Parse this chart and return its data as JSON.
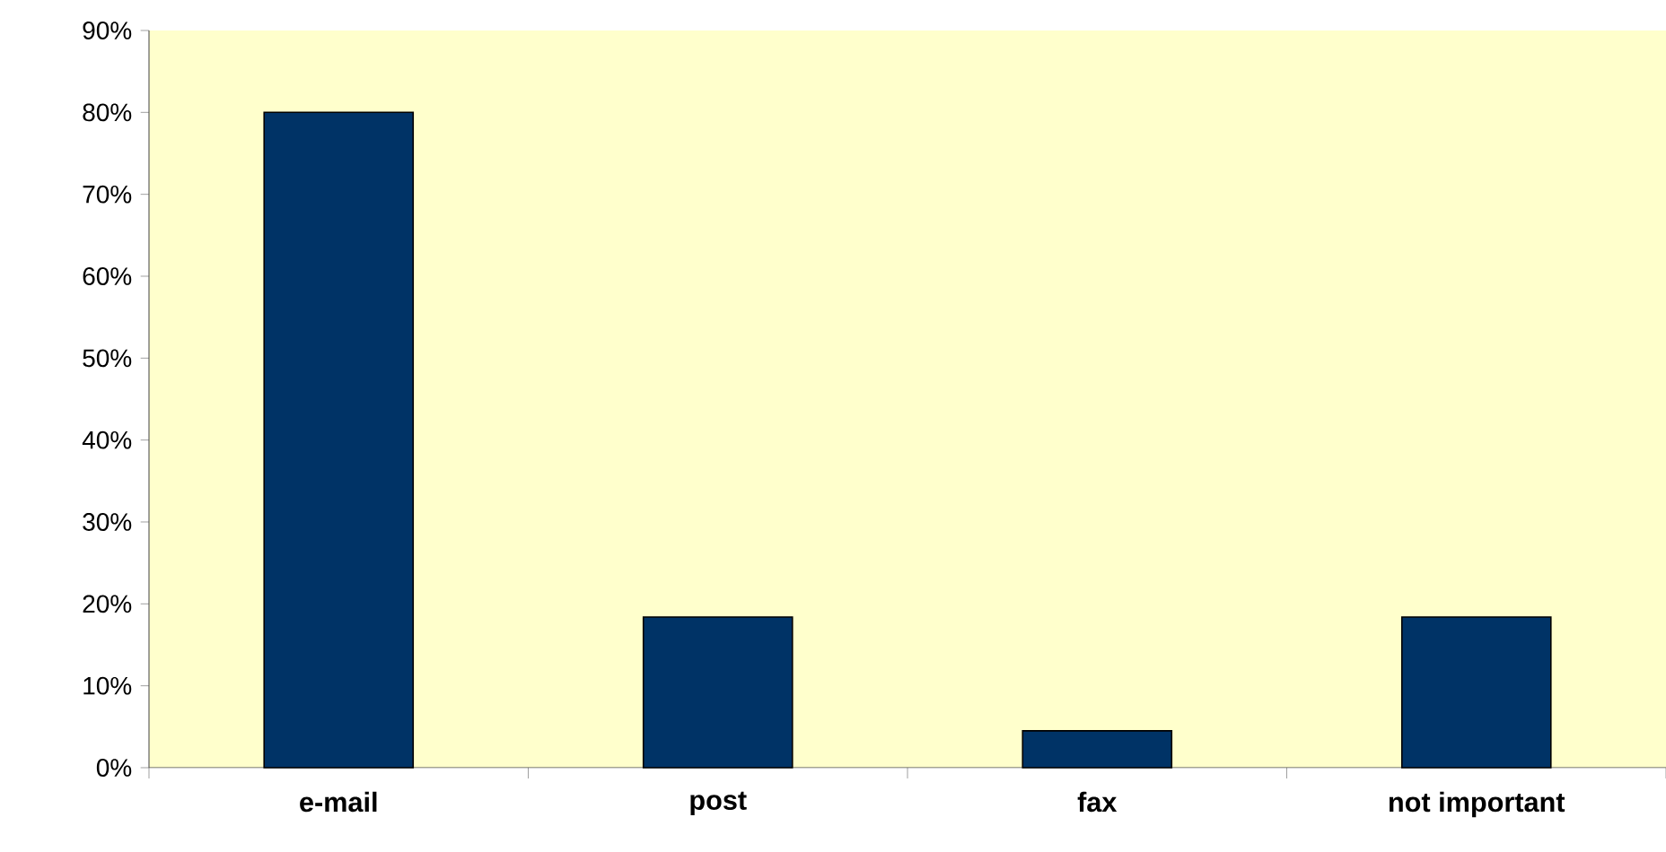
{
  "chart_data": {
    "type": "bar",
    "categories": [
      "e-mail",
      "post",
      "fax",
      "not important"
    ],
    "values": [
      80,
      18.4,
      4.5,
      18.4
    ],
    "color": "#003366",
    "ylim": [
      0,
      90
    ],
    "yticks": [
      {
        "value": 0,
        "label": "0%"
      },
      {
        "value": 10,
        "label": "10%"
      },
      {
        "value": 20,
        "label": "20%"
      },
      {
        "value": 30,
        "label": "30%"
      },
      {
        "value": 40,
        "label": "40%"
      },
      {
        "value": 50,
        "label": "50%"
      },
      {
        "value": 60,
        "label": "60%"
      },
      {
        "value": 70,
        "label": "70%"
      },
      {
        "value": 80,
        "label": "80%"
      },
      {
        "value": 90,
        "label": "90%"
      }
    ],
    "grid": false
  }
}
